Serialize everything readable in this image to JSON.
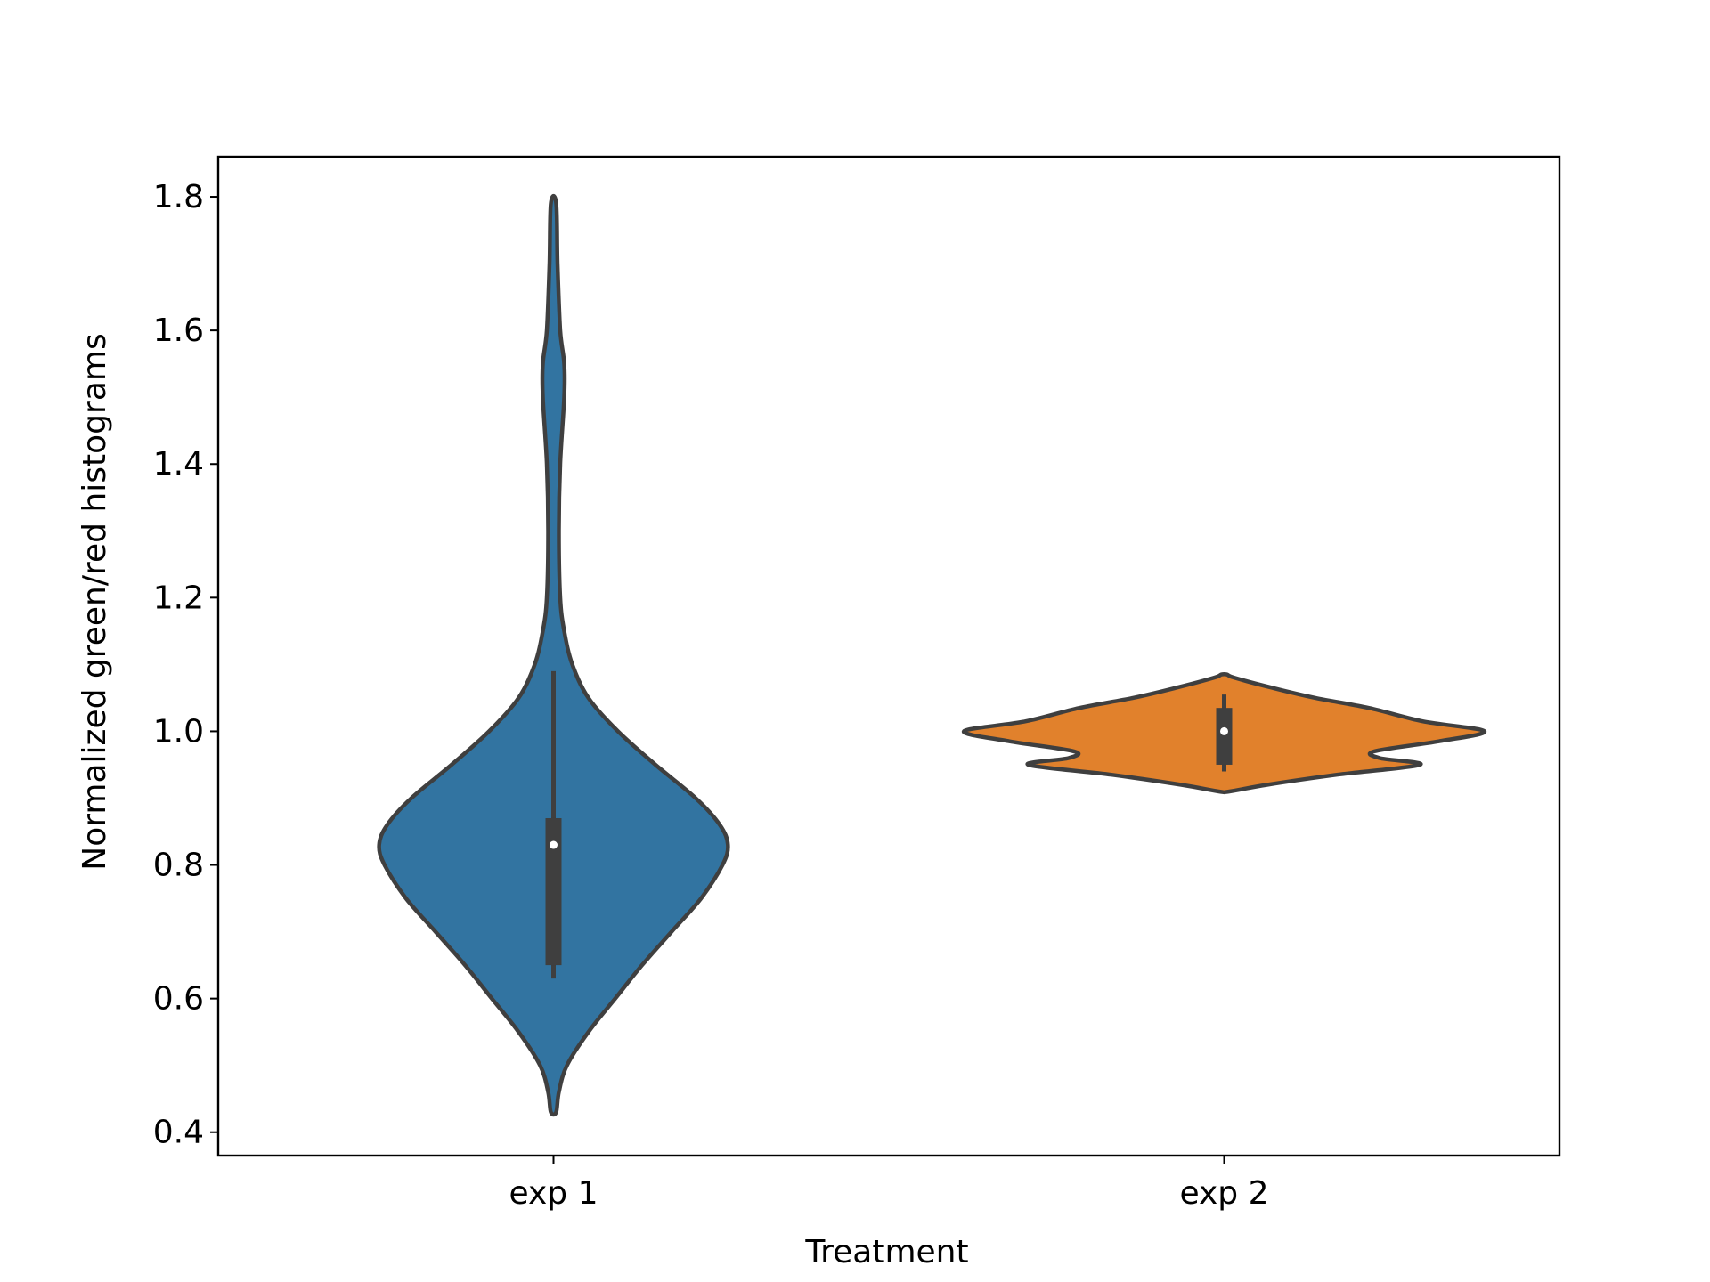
{
  "chart_data": {
    "type": "violin",
    "title": "",
    "xlabel": "Treatment",
    "ylabel": "Normalized green/red histograms",
    "categories": [
      "exp 1",
      "exp 2"
    ],
    "ylim": [
      0.365,
      1.86
    ],
    "yticks": [
      0.4,
      0.6,
      0.8,
      1.0,
      1.2,
      1.4,
      1.6,
      1.8
    ],
    "ytick_labels": [
      "0.4",
      "0.6",
      "0.8",
      "1.0",
      "1.2",
      "1.4",
      "1.6",
      "1.8"
    ],
    "grid": false,
    "series": [
      {
        "category": "exp 1",
        "color": "#3274a1",
        "min": 0.43,
        "max": 1.79,
        "q1": 0.65,
        "median": 0.83,
        "q3": 0.87,
        "whisker_low": 0.63,
        "whisker_high": 1.09,
        "density": [
          [
            0.43,
            0.01
          ],
          [
            0.46,
            0.02
          ],
          [
            0.5,
            0.05
          ],
          [
            0.55,
            0.13
          ],
          [
            0.6,
            0.23
          ],
          [
            0.65,
            0.33
          ],
          [
            0.7,
            0.44
          ],
          [
            0.75,
            0.55
          ],
          [
            0.8,
            0.63
          ],
          [
            0.83,
            0.65
          ],
          [
            0.86,
            0.62
          ],
          [
            0.9,
            0.53
          ],
          [
            0.95,
            0.38
          ],
          [
            1.0,
            0.24
          ],
          [
            1.05,
            0.13
          ],
          [
            1.1,
            0.07
          ],
          [
            1.15,
            0.04
          ],
          [
            1.2,
            0.025
          ],
          [
            1.3,
            0.02
          ],
          [
            1.4,
            0.025
          ],
          [
            1.5,
            0.04
          ],
          [
            1.55,
            0.04
          ],
          [
            1.6,
            0.025
          ],
          [
            1.7,
            0.015
          ],
          [
            1.79,
            0.01
          ]
        ]
      },
      {
        "category": "exp 2",
        "color": "#e1812c",
        "min": 0.91,
        "max": 1.085,
        "q1": 0.95,
        "median": 1.0,
        "q3": 1.035,
        "whisker_low": 0.94,
        "whisker_high": 1.055,
        "density": [
          [
            0.91,
            0.02
          ],
          [
            0.92,
            0.16
          ],
          [
            0.935,
            0.42
          ],
          [
            0.95,
            0.73
          ],
          [
            0.96,
            0.58
          ],
          [
            0.97,
            0.56
          ],
          [
            0.985,
            0.8
          ],
          [
            1.0,
            0.97
          ],
          [
            1.015,
            0.74
          ],
          [
            1.035,
            0.54
          ],
          [
            1.05,
            0.34
          ],
          [
            1.065,
            0.18
          ],
          [
            1.08,
            0.04
          ],
          [
            1.085,
            0.01
          ]
        ]
      }
    ]
  }
}
